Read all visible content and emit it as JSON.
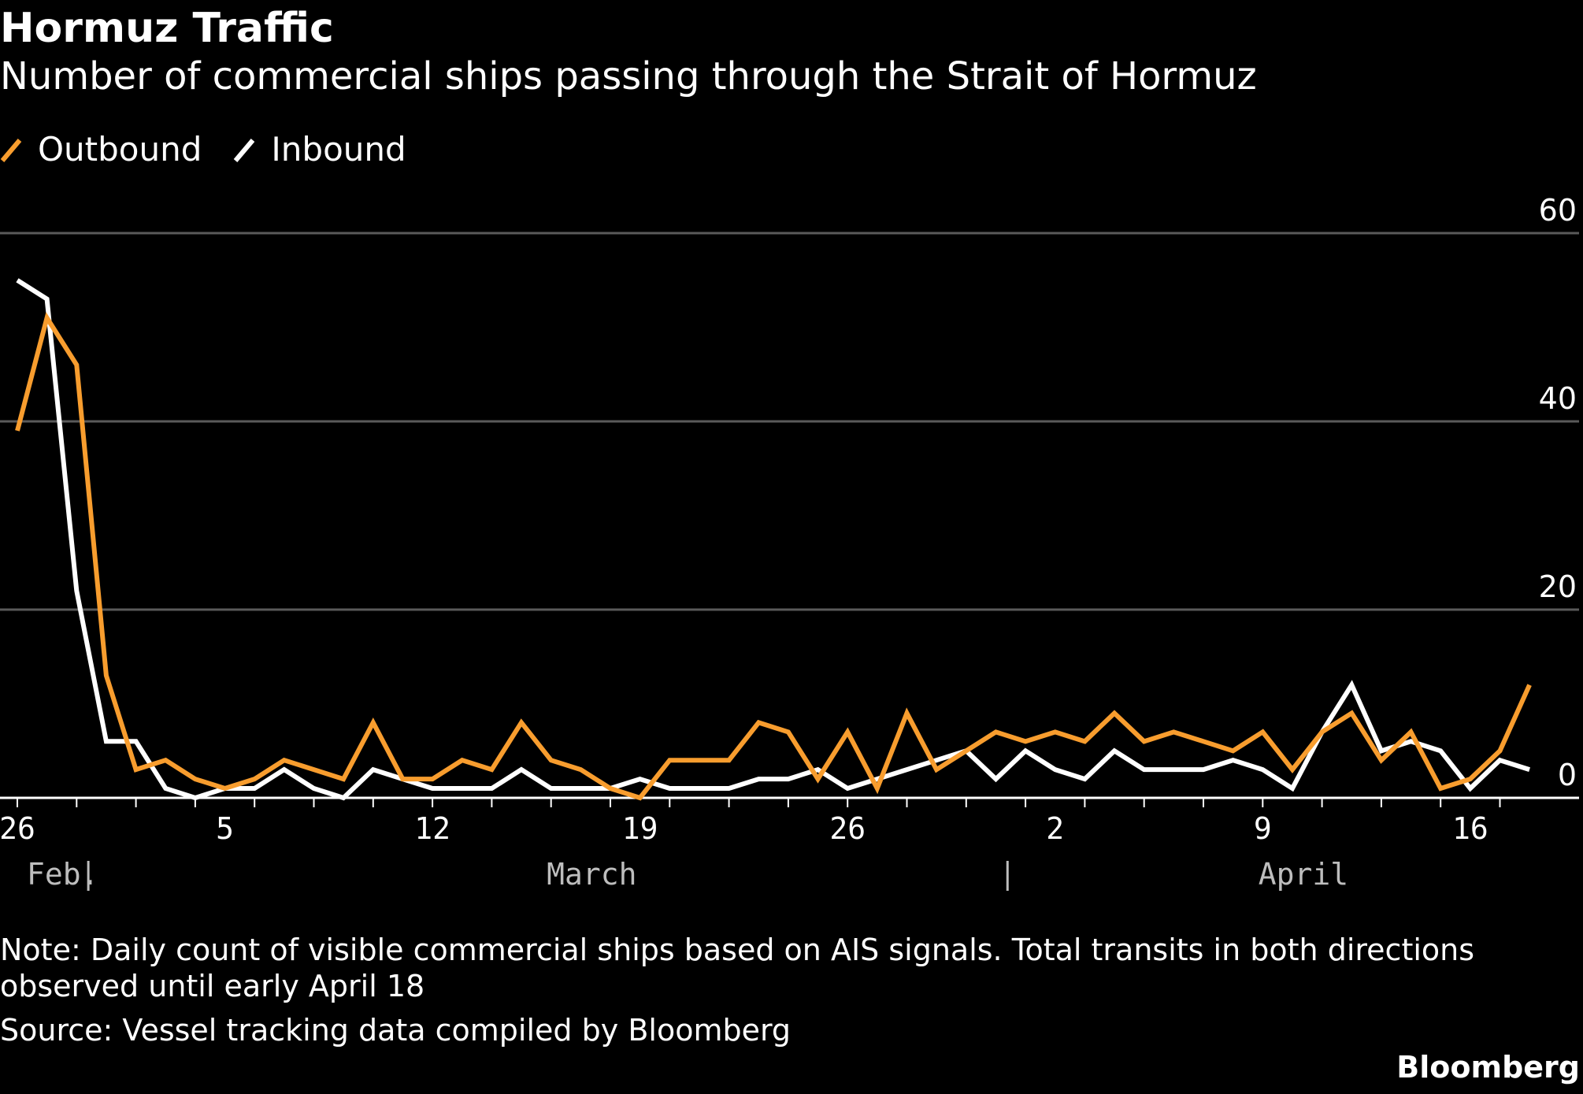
{
  "header": {
    "title": "Hormuz Traffic",
    "subtitle": "Number of commercial ships passing through the Strait of Hormuz"
  },
  "legend": {
    "items": [
      {
        "label": "Outbound",
        "color": "#F89D2E"
      },
      {
        "label": "Inbound",
        "color": "#FFFFFF"
      }
    ]
  },
  "footer": {
    "note": "Note: Daily count of visible commercial ships based on AIS signals. Total transits in both directions observed until early April 18",
    "source": "Source: Vessel tracking data compiled by Bloomberg",
    "brand": "Bloomberg"
  },
  "chart_data": {
    "type": "line",
    "title": "Hormuz Traffic",
    "subtitle": "Number of commercial ships passing through the Strait of Hormuz",
    "ylim": [
      0,
      60
    ],
    "yticks": [
      0,
      20,
      40,
      60
    ],
    "y_axis_side": "right",
    "grid": true,
    "legend_placement": "top-left",
    "x": [
      "Feb 26",
      "Feb 27",
      "Feb 28",
      "Mar 1",
      "Mar 2",
      "Mar 3",
      "Mar 4",
      "Mar 5",
      "Mar 6",
      "Mar 7",
      "Mar 8",
      "Mar 9",
      "Mar 10",
      "Mar 11",
      "Mar 12",
      "Mar 13",
      "Mar 14",
      "Mar 15",
      "Mar 16",
      "Mar 17",
      "Mar 18",
      "Mar 19",
      "Mar 20",
      "Mar 21",
      "Mar 22",
      "Mar 23",
      "Mar 24",
      "Mar 25",
      "Mar 26",
      "Mar 27",
      "Mar 28",
      "Mar 29",
      "Mar 30",
      "Mar 31",
      "Apr 1",
      "Apr 2",
      "Apr 3",
      "Apr 4",
      "Apr 5",
      "Apr 6",
      "Apr 7",
      "Apr 8",
      "Apr 9",
      "Apr 10",
      "Apr 11",
      "Apr 12",
      "Apr 13",
      "Apr 14",
      "Apr 15",
      "Apr 16",
      "Apr 17",
      "Apr 18"
    ],
    "xticks": [
      {
        "index": 0,
        "label": "26"
      },
      {
        "index": 7,
        "label": "5"
      },
      {
        "index": 14,
        "label": "12"
      },
      {
        "index": 21,
        "label": "19"
      },
      {
        "index": 28,
        "label": "26"
      },
      {
        "index": 35,
        "label": "2"
      },
      {
        "index": 42,
        "label": "9"
      },
      {
        "index": 49,
        "label": "16"
      }
    ],
    "months": [
      {
        "label": "Feb.",
        "start_index": 0,
        "align": "start"
      },
      {
        "label": "March",
        "center_index": 19,
        "align": "center"
      },
      {
        "label": "April",
        "center_index": 43,
        "align": "center"
      }
    ],
    "month_separators": [
      3,
      34
    ],
    "series": [
      {
        "name": "Outbound",
        "color": "#F89D2E",
        "values": [
          39,
          51,
          46,
          13,
          3,
          4,
          2,
          1,
          2,
          4,
          3,
          2,
          8,
          2,
          2,
          4,
          3,
          8,
          4,
          3,
          1,
          0,
          4,
          4,
          4,
          8,
          7,
          2,
          7,
          1,
          9,
          3,
          5,
          7,
          6,
          7,
          6,
          9,
          6,
          7,
          6,
          5,
          7,
          3,
          7,
          9,
          4,
          7,
          1,
          2,
          5,
          12
        ]
      },
      {
        "name": "Inbound",
        "color": "#FFFFFF",
        "values": [
          55,
          53,
          22,
          6,
          6,
          1,
          0,
          1,
          1,
          3,
          1,
          0,
          3,
          2,
          1,
          1,
          1,
          3,
          1,
          1,
          1,
          2,
          1,
          1,
          1,
          2,
          2,
          3,
          1,
          2,
          3,
          4,
          5,
          2,
          5,
          3,
          2,
          5,
          3,
          3,
          3,
          4,
          3,
          1,
          7,
          12,
          5,
          6,
          5,
          1,
          4,
          3
        ]
      }
    ]
  }
}
